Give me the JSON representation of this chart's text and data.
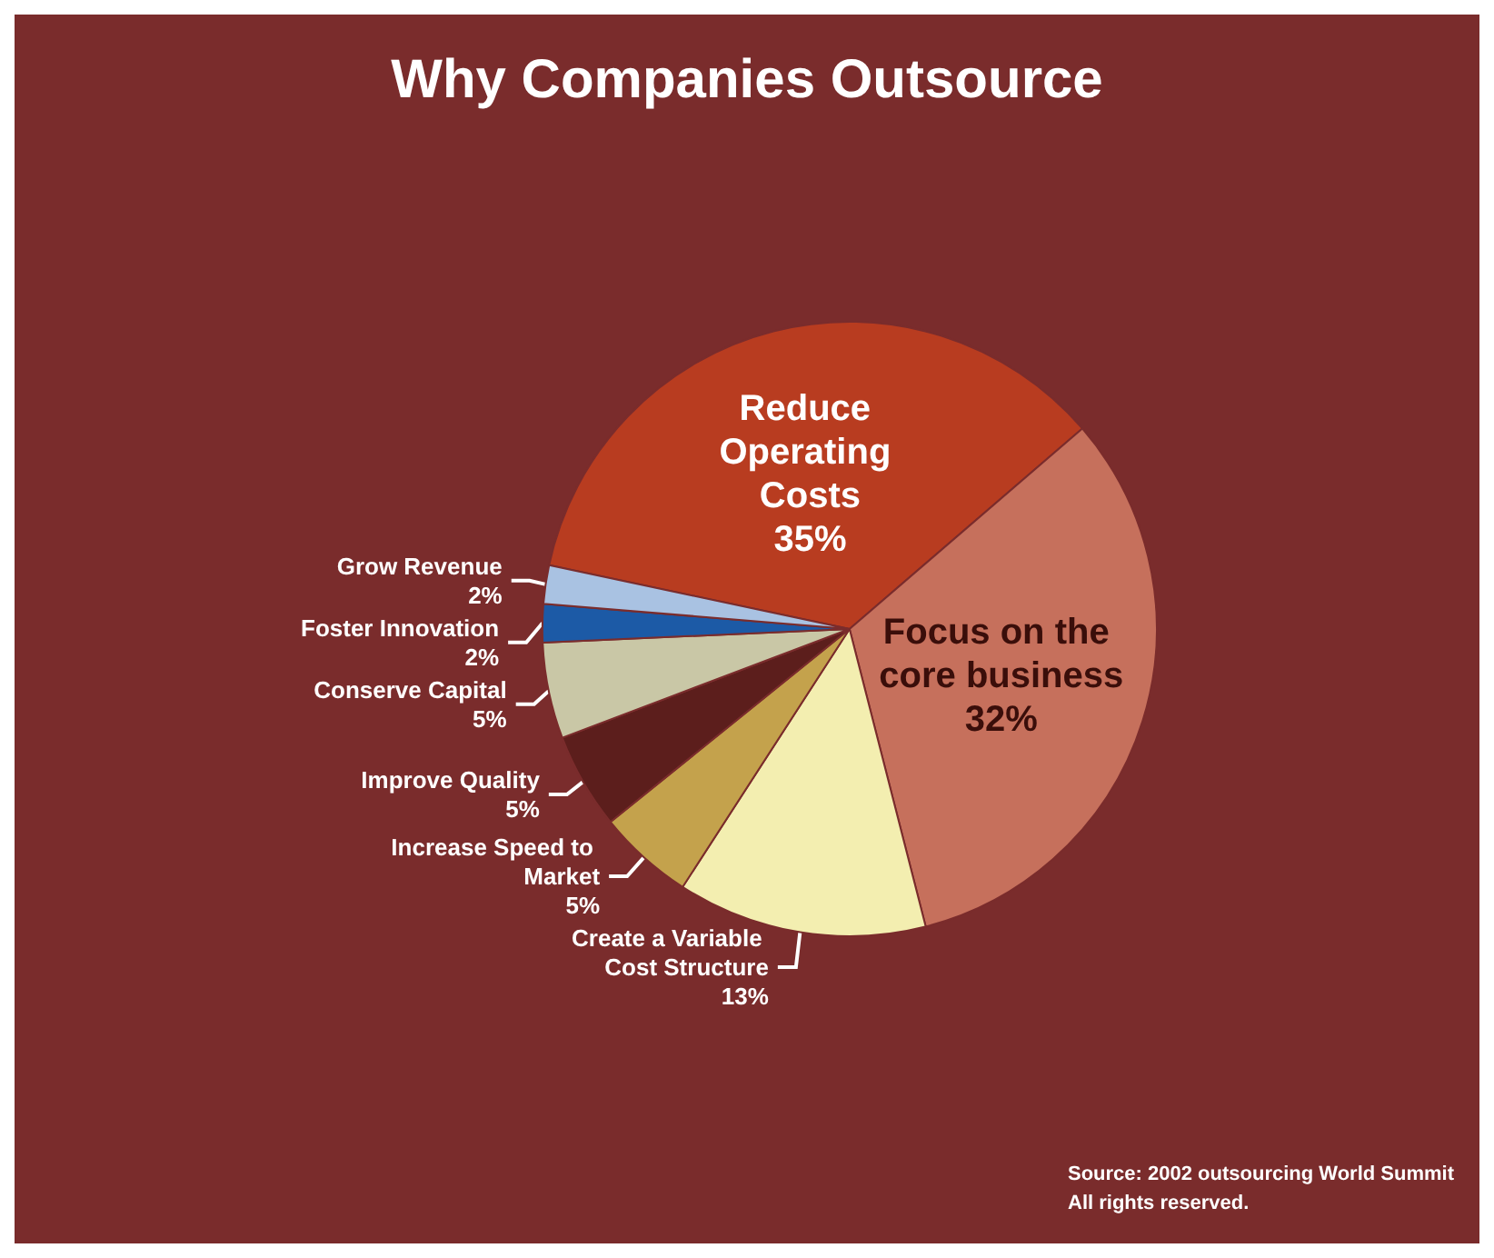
{
  "chart_data": {
    "type": "pie",
    "title": "Why Companies Outsource",
    "categories": [
      "Reduce Operating Costs",
      "Focus on the core business",
      "Create a Variable Cost Structure",
      "Increase Speed to Market",
      "Improve Quality",
      "Conserve Capital",
      "Foster Innovation",
      "Grow Revenue"
    ],
    "values": [
      35,
      32,
      13,
      5,
      5,
      5,
      2,
      2
    ],
    "colors": [
      "#b83c20",
      "#c6705c",
      "#f3eeb0",
      "#c4a24c",
      "#5c1e1c",
      "#c9c7a6",
      "#1c5aa6",
      "#a9c2e2"
    ],
    "value_labels": [
      "35%",
      "32%",
      "13%",
      "5%",
      "5%",
      "5%",
      "2%",
      "2%"
    ],
    "annotations": [
      "Source: 2002 outsourcing World Summit",
      "All rights reserved."
    ],
    "legend": false
  }
}
